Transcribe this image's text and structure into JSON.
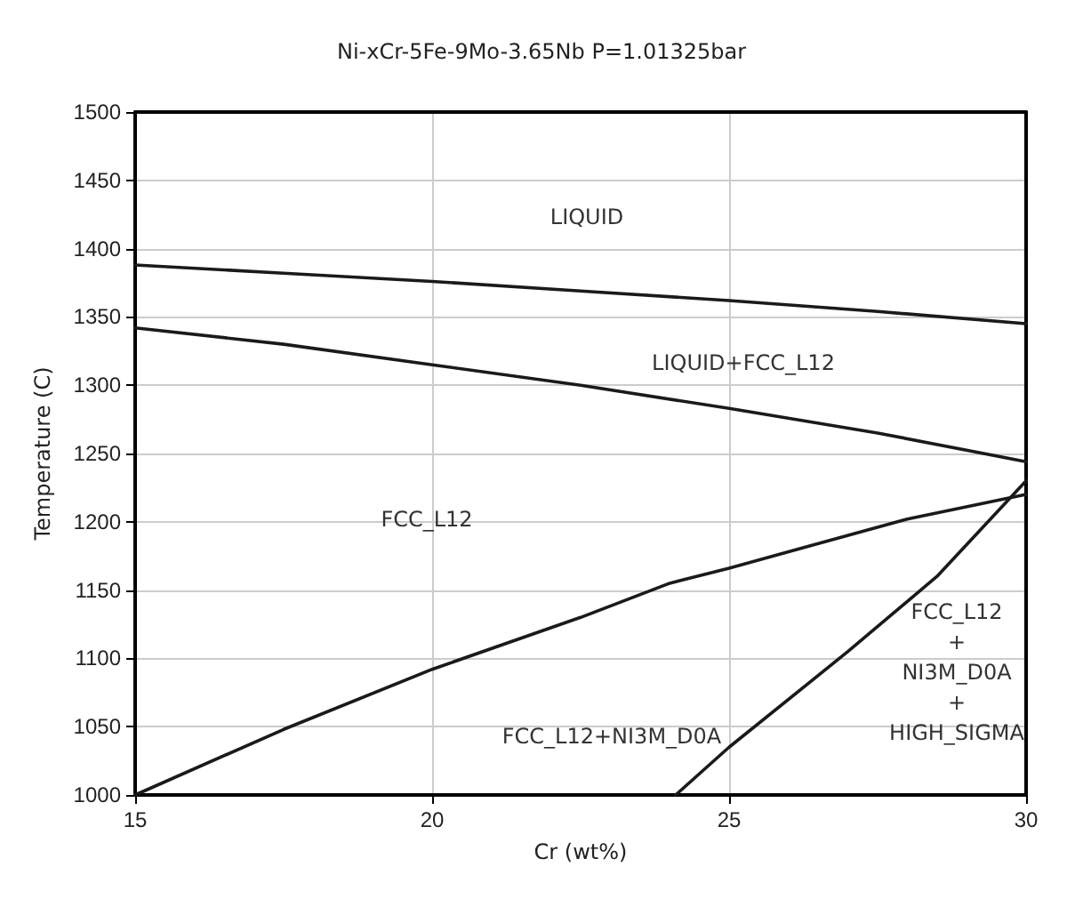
{
  "chart_data": {
    "type": "line",
    "title": "Ni-xCr-5Fe-9Mo-3.65Nb P=1.01325bar",
    "xlabel": "Cr (wt%)",
    "ylabel": "Temperature (C)",
    "xlim": [
      15,
      30
    ],
    "xticks": [
      15,
      20,
      25,
      30
    ],
    "ylim": [
      1000,
      1500
    ],
    "yticks": [
      1000,
      1050,
      1100,
      1150,
      1200,
      1250,
      1300,
      1350,
      1400,
      1450,
      1500
    ],
    "grid": true,
    "marker": "none",
    "line_style": "solid",
    "series": [
      {
        "color": "#1a1a1a",
        "x": [
          15,
          17.5,
          20,
          22.5,
          25,
          27.5,
          30
        ],
        "values": [
          1388,
          1382,
          1376,
          1369,
          1362,
          1354,
          1345
        ]
      },
      {
        "color": "#1a1a1a",
        "x": [
          15,
          17.5,
          20,
          22.5,
          25,
          27.5,
          30
        ],
        "values": [
          1342,
          1330,
          1315,
          1300,
          1283,
          1265,
          1244
        ]
      },
      {
        "color": "#1a1a1a",
        "x": [
          15,
          17.5,
          20,
          22.5,
          24,
          25,
          26,
          28,
          30
        ],
        "values": [
          1000,
          1048,
          1092,
          1130,
          1155,
          1166,
          1178,
          1202,
          1220
        ]
      },
      {
        "color": "#1a1a1a",
        "x": [
          24.1,
          25,
          27,
          28.5,
          30
        ],
        "values": [
          1000,
          1035,
          1105,
          1160,
          1230
        ]
      }
    ],
    "annotations": [
      "LIQUID",
      "LIQUID+FCC_L12",
      "FCC_L12",
      "FCC_L12+NI3M_D0A",
      "FCC_L12\n+\nNI3M_D0A\n+\nHIGH_SIGMA"
    ]
  }
}
